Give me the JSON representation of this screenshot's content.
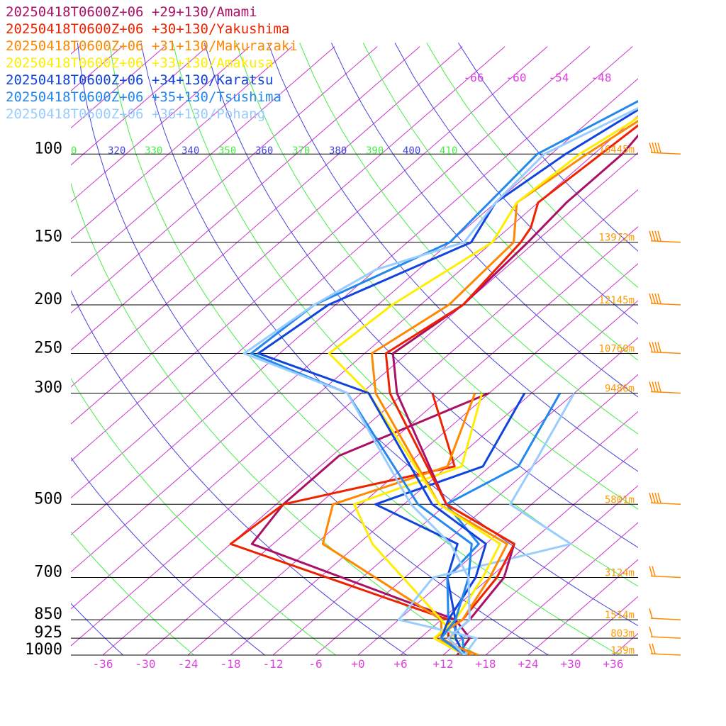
{
  "chart_data": {
    "type": "line",
    "subtype": "skew-T log-P sounding",
    "x_axis": {
      "ticks": [
        "-36",
        "-30",
        "-24",
        "-18",
        "-12",
        "-6",
        "+0",
        "+6",
        "+12",
        "+18",
        "+24",
        "+30",
        "+36"
      ],
      "values": [
        -36,
        -30,
        -24,
        -18,
        -12,
        -6,
        0,
        6,
        12,
        18,
        24,
        30,
        36
      ],
      "color": "#dd44dd"
    },
    "y_axis": {
      "ticks": [
        "100",
        "150",
        "200",
        "250",
        "300",
        "500",
        "700",
        "850",
        "925",
        "1000"
      ],
      "values": [
        100,
        150,
        200,
        250,
        300,
        500,
        700,
        850,
        925,
        1000
      ],
      "scale": "log"
    },
    "heights": [
      {
        "p": 100,
        "label": "16445m"
      },
      {
        "p": 150,
        "label": "13972m"
      },
      {
        "p": 200,
        "label": "12145m"
      },
      {
        "p": 250,
        "label": "10760m"
      },
      {
        "p": 300,
        "label": "9486m"
      },
      {
        "p": 500,
        "label": "5801m"
      },
      {
        "p": 700,
        "label": "3124m"
      },
      {
        "p": 850,
        "label": "1514m"
      },
      {
        "p": 925,
        "label": "803m"
      },
      {
        "p": 1000,
        "label": "139m"
      }
    ],
    "isotherm_labels_top": [
      "-66",
      "-60",
      "-54",
      "-48"
    ],
    "theta_labels": [
      {
        "label": "0",
        "color": "#44ee44"
      },
      {
        "label": "320",
        "color": "#4444dd"
      },
      {
        "label": "330",
        "color": "#44ee44"
      },
      {
        "label": "340",
        "color": "#4444dd"
      },
      {
        "label": "350",
        "color": "#44ee44"
      },
      {
        "label": "360",
        "color": "#4444dd"
      },
      {
        "label": "370",
        "color": "#44ee44"
      },
      {
        "label": "380",
        "color": "#4444dd"
      },
      {
        "label": "390",
        "color": "#44ee44"
      },
      {
        "label": "400",
        "color": "#4444dd"
      },
      {
        "label": "410",
        "color": "#44ee44"
      }
    ],
    "series": [
      {
        "name": "20250418T0600Z+06 +29+130/Amami",
        "color": "#aa1166",
        "temp": [
          [
            61,
            -46
          ],
          [
            80,
            -46
          ],
          [
            100,
            -44
          ],
          [
            125,
            -44
          ],
          [
            150,
            -43
          ],
          [
            200,
            -42
          ],
          [
            250,
            -44
          ],
          [
            300,
            -37
          ],
          [
            500,
            -12
          ],
          [
            600,
            4
          ],
          [
            700,
            8
          ],
          [
            850,
            10
          ],
          [
            925,
            10
          ],
          [
            1000,
            15
          ]
        ],
        "dew": [
          [
            300,
            -24
          ],
          [
            400,
            -35
          ],
          [
            500,
            -35
          ],
          [
            600,
            -33
          ],
          [
            850,
            8
          ],
          [
            925,
            13
          ],
          [
            1000,
            14
          ]
        ]
      },
      {
        "name": "20250418T0600Z+06 +30+130/Yakushima",
        "color": "#ee2200",
        "temp": [
          [
            64,
            -46
          ],
          [
            80,
            -46
          ],
          [
            100,
            -47
          ],
          [
            125,
            -48
          ],
          [
            140,
            -45
          ],
          [
            150,
            -44
          ],
          [
            200,
            -42
          ],
          [
            250,
            -45
          ],
          [
            300,
            -38
          ],
          [
            500,
            -12
          ],
          [
            600,
            4
          ],
          [
            700,
            7
          ],
          [
            850,
            9
          ],
          [
            925,
            8
          ],
          [
            1000,
            15
          ]
        ],
        "dew": [
          [
            300,
            -32
          ],
          [
            420,
            -17
          ],
          [
            500,
            -35
          ],
          [
            600,
            -36
          ],
          [
            850,
            7
          ],
          [
            925,
            10
          ],
          [
            1000,
            15
          ]
        ]
      },
      {
        "name": "20250418T0600Z+06 +31+130/Makurazaki",
        "color": "#ff8800",
        "temp": [
          [
            66,
            -46
          ],
          [
            85,
            -47
          ],
          [
            100,
            -49
          ],
          [
            125,
            -51
          ],
          [
            150,
            -45
          ],
          [
            200,
            -44
          ],
          [
            250,
            -47
          ],
          [
            300,
            -40
          ],
          [
            500,
            -13
          ],
          [
            600,
            3
          ],
          [
            700,
            6
          ],
          [
            850,
            9
          ],
          [
            925,
            8
          ],
          [
            1000,
            17
          ]
        ],
        "dew": [
          [
            300,
            -26
          ],
          [
            420,
            -18
          ],
          [
            500,
            -28
          ],
          [
            600,
            -23
          ],
          [
            850,
            6
          ],
          [
            925,
            9
          ],
          [
            1000,
            16
          ]
        ]
      },
      {
        "name": "20250418T0600Z+06 +33+130/Amakusa",
        "color": "#ffee00",
        "temp": [
          [
            67,
            -46
          ],
          [
            87,
            -48
          ],
          [
            100,
            -50
          ],
          [
            125,
            -51
          ],
          [
            150,
            -48
          ],
          [
            200,
            -52
          ],
          [
            250,
            -53
          ],
          [
            300,
            -41
          ],
          [
            500,
            -13
          ],
          [
            600,
            2
          ],
          [
            700,
            5
          ],
          [
            850,
            8
          ],
          [
            925,
            8
          ],
          [
            1000,
            15
          ]
        ],
        "dew": [
          [
            300,
            -25
          ],
          [
            420,
            -16
          ],
          [
            500,
            -25
          ],
          [
            600,
            -16
          ],
          [
            850,
            6
          ],
          [
            925,
            11
          ],
          [
            1000,
            15
          ]
        ]
      },
      {
        "name": "20250418T0600Z+06 +34+130/Karatsu",
        "color": "#1144dd",
        "temp": [
          [
            67,
            -46
          ],
          [
            100,
            -52
          ],
          [
            125,
            -54
          ],
          [
            150,
            -51
          ],
          [
            200,
            -61
          ],
          [
            250,
            -63
          ],
          [
            300,
            -41
          ],
          [
            500,
            -14
          ],
          [
            600,
            0
          ],
          [
            700,
            4
          ],
          [
            850,
            7
          ],
          [
            925,
            9
          ],
          [
            1000,
            15
          ]
        ],
        "dew": [
          [
            300,
            -19
          ],
          [
            420,
            -13
          ],
          [
            500,
            -22
          ],
          [
            600,
            -4
          ],
          [
            700,
            0
          ],
          [
            850,
            8
          ],
          [
            925,
            11
          ],
          [
            1000,
            15
          ]
        ]
      },
      {
        "name": "20250418T0600Z+06 +35+130/Tsushima",
        "color": "#2288ee",
        "temp": [
          [
            65,
            -46
          ],
          [
            100,
            -56
          ],
          [
            150,
            -54
          ],
          [
            200,
            -63
          ],
          [
            250,
            -64
          ],
          [
            300,
            -44
          ],
          [
            500,
            -16
          ],
          [
            600,
            -2
          ],
          [
            700,
            3
          ],
          [
            850,
            8
          ],
          [
            925,
            9
          ],
          [
            1000,
            15
          ]
        ],
        "dew": [
          [
            300,
            -14
          ],
          [
            420,
            -8
          ],
          [
            500,
            -12
          ],
          [
            600,
            -1
          ],
          [
            700,
            0
          ],
          [
            850,
            7
          ],
          [
            925,
            12
          ],
          [
            1000,
            15
          ]
        ]
      },
      {
        "name": "20250418T0600Z+06 +36+130/Pohang",
        "color": "#99ccff",
        "temp": [
          [
            72,
            -46
          ],
          [
            100,
            -55
          ],
          [
            125,
            -54
          ],
          [
            150,
            -52
          ],
          [
            170,
            -60
          ],
          [
            200,
            -63
          ],
          [
            250,
            -65
          ],
          [
            300,
            -44
          ],
          [
            500,
            -17
          ],
          [
            600,
            -5
          ],
          [
            700,
            3
          ],
          [
            850,
            10
          ],
          [
            925,
            10
          ],
          [
            1000,
            15
          ]
        ],
        "dew": [
          [
            300,
            -12
          ],
          [
            420,
            -6
          ],
          [
            500,
            -3
          ],
          [
            600,
            12
          ],
          [
            700,
            -2
          ],
          [
            850,
            0
          ],
          [
            925,
            14
          ],
          [
            1000,
            15
          ]
        ]
      }
    ],
    "wind_barbs": [
      {
        "p": 100,
        "knots": 60,
        "color": "#ff8800"
      },
      {
        "p": 150,
        "knots": 65,
        "color": "#ff8800"
      },
      {
        "p": 200,
        "knots": 55,
        "color": "#ff8800"
      },
      {
        "p": 250,
        "knots": 50,
        "color": "#ff8800"
      },
      {
        "p": 300,
        "knots": 45,
        "color": "#ff8800"
      },
      {
        "p": 500,
        "knots": 35,
        "color": "#ff8800"
      },
      {
        "p": 700,
        "knots": 15,
        "color": "#ff8800"
      },
      {
        "p": 850,
        "knots": 10,
        "color": "#ff8800"
      },
      {
        "p": 925,
        "knots": 10,
        "color": "#ff8800"
      },
      {
        "p": 1000,
        "knots": 15,
        "color": "#ff8800"
      }
    ],
    "colors": {
      "isobar": "#000000",
      "isotherm": "#cc33cc",
      "dry_adiabat_a": "#4444dd",
      "dry_adiabat_b": "#44ee44",
      "height": "#ff9900"
    }
  }
}
